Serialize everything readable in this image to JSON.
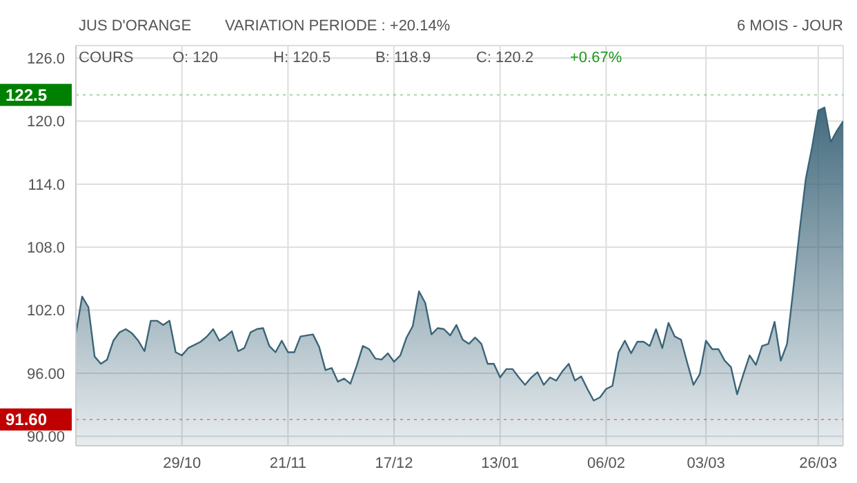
{
  "chart_data": {
    "type": "area",
    "title": "JUS D'ORANGE",
    "subtitle": "VARIATION PERIODE : +20.14%",
    "annotations": [
      "6 MOIS - JOUR",
      "COURS",
      "O: 120",
      "H: 120.5",
      "B: 118.9",
      "C: 120.2",
      "+0.67%"
    ],
    "categories": [
      null,
      null,
      null,
      null,
      null,
      null,
      null,
      null,
      null,
      null,
      null,
      null,
      null,
      null,
      null,
      null,
      null,
      "29/10",
      null,
      null,
      null,
      null,
      null,
      null,
      null,
      null,
      null,
      null,
      null,
      null,
      null,
      null,
      null,
      null,
      "21/11",
      null,
      null,
      null,
      null,
      null,
      null,
      null,
      null,
      null,
      null,
      null,
      null,
      null,
      null,
      null,
      null,
      "17/12",
      null,
      null,
      null,
      null,
      null,
      null,
      null,
      null,
      null,
      null,
      null,
      null,
      null,
      null,
      null,
      null,
      "13/01",
      null,
      null,
      null,
      null,
      null,
      null,
      null,
      null,
      null,
      null,
      null,
      null,
      null,
      null,
      null,
      null,
      "06/02",
      null,
      null,
      null,
      null,
      null,
      null,
      null,
      null,
      null,
      null,
      null,
      null,
      null,
      null,
      null,
      "03/03",
      null,
      null,
      null,
      null,
      null,
      null,
      null,
      null,
      null,
      null,
      null,
      null,
      null,
      null,
      null,
      null,
      null,
      "26/03",
      null,
      null,
      null,
      null
    ],
    "series": [
      {
        "color": "#3b6478",
        "values": [
          99.8,
          103.3,
          102.3,
          97.6,
          96.9,
          97.3,
          99.1,
          99.9,
          100.2,
          99.8,
          99.1,
          98.1,
          101.0,
          101.0,
          100.6,
          101.0,
          98.0,
          97.7,
          98.4,
          98.7,
          99.0,
          99.5,
          100.2,
          99.1,
          99.5,
          100.0,
          98.1,
          98.4,
          99.9,
          100.2,
          100.3,
          98.6,
          98.0,
          99.1,
          98.0,
          98.0,
          99.5,
          99.6,
          99.7,
          98.5,
          96.3,
          96.5,
          95.2,
          95.5,
          95.0,
          96.7,
          98.6,
          98.3,
          97.4,
          97.3,
          97.9,
          97.1,
          97.7,
          99.4,
          100.5,
          103.8,
          102.7,
          99.7,
          100.3,
          100.2,
          99.6,
          100.6,
          99.2,
          98.8,
          99.4,
          98.8,
          96.9,
          96.9,
          95.6,
          96.4,
          96.4,
          95.6,
          94.9,
          95.6,
          96.1,
          94.9,
          95.6,
          95.3,
          96.2,
          96.9,
          95.3,
          95.7,
          94.5,
          93.4,
          93.7,
          94.5,
          94.8,
          98.0,
          99.1,
          97.9,
          99.0,
          99.0,
          98.6,
          100.2,
          98.4,
          100.8,
          99.5,
          99.2,
          97.0,
          94.9,
          95.9,
          99.1,
          98.3,
          98.3,
          97.2,
          96.6,
          94.0,
          95.9,
          97.7,
          96.8,
          98.6,
          98.8,
          100.9,
          97.2,
          98.8,
          104.0,
          109.5,
          114.5,
          117.5,
          121.0,
          121.3,
          118.0,
          119.1,
          120.0
        ]
      }
    ],
    "ylim": [
      89.1,
      127.2
    ],
    "yticks": [
      {
        "value": 90,
        "label": "90.00"
      },
      {
        "value": 96,
        "label": "96.00"
      },
      {
        "value": 102,
        "label": "102.0"
      },
      {
        "value": 108,
        "label": "108.0"
      },
      {
        "value": 114,
        "label": "114.0"
      },
      {
        "value": 120,
        "label": "120.0"
      },
      {
        "value": 126,
        "label": "126.0"
      }
    ],
    "ref_lines": [
      {
        "axis": "y",
        "value": 122.5,
        "label": "122.5",
        "color": "#008000"
      },
      {
        "axis": "y",
        "value": 91.6,
        "label": "91.60",
        "color": "#c00000"
      }
    ],
    "grid": true
  }
}
